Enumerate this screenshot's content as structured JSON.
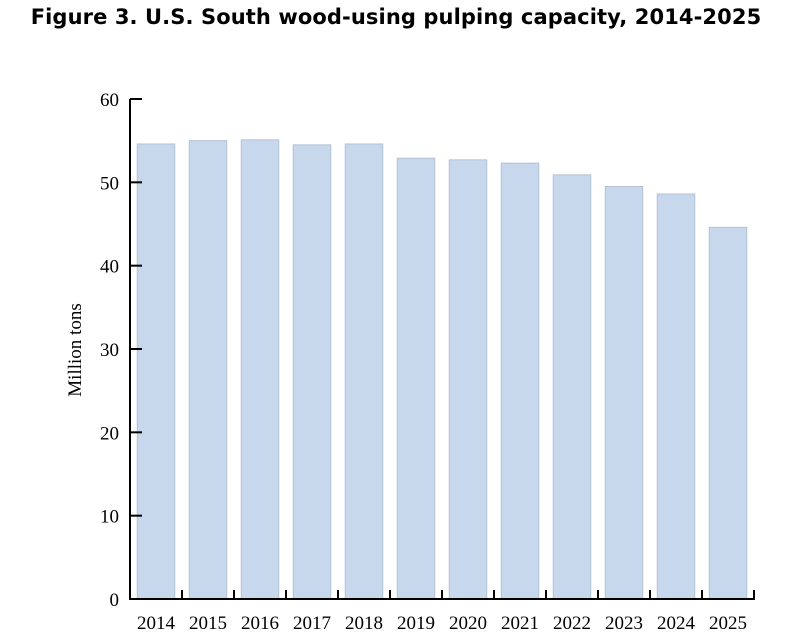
{
  "chart_data": {
    "type": "bar",
    "title": "Figure 3. U.S. South wood-using pulping capacity, 2014-2025",
    "xlabel": "",
    "ylabel": "Million tons",
    "categories": [
      "2014",
      "2015",
      "2016",
      "2017",
      "2018",
      "2019",
      "2020",
      "2021",
      "2022",
      "2023",
      "2024",
      "2025"
    ],
    "values": [
      54.6,
      55.0,
      55.1,
      54.5,
      54.6,
      52.9,
      52.7,
      52.3,
      50.9,
      49.5,
      48.6,
      44.6
    ],
    "ylim": [
      0,
      60
    ],
    "yticks": [
      0,
      10,
      20,
      30,
      40,
      50,
      60
    ],
    "grid": false,
    "legend": "none",
    "colors": {
      "bar": "#c8d8ec",
      "bar_edge": "#b4c2d2",
      "axis": "#000000"
    }
  }
}
